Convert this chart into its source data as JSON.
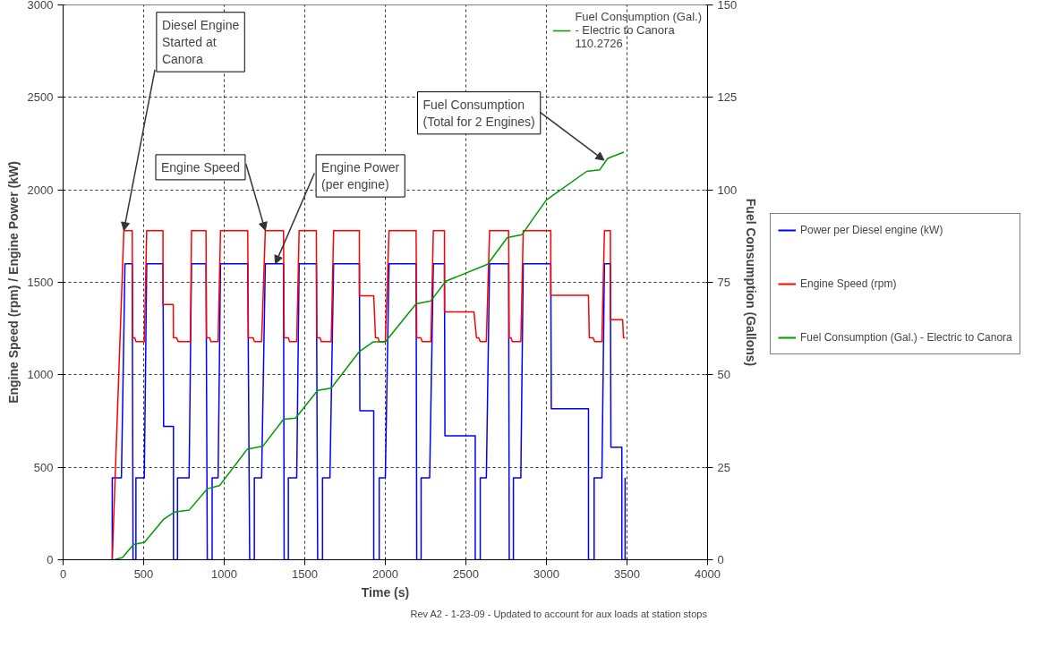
{
  "chart_data": {
    "type": "line",
    "xlabel": "Time (s)",
    "ylabel": "Engine Speed (rpm) / Engine Power (kW)",
    "y2label": "Fuel Consumption (Gallons)",
    "xlim": [
      0,
      4000
    ],
    "xticks": [
      0,
      500,
      1000,
      1500,
      2000,
      2500,
      3000,
      3500,
      4000
    ],
    "ylim": [
      0,
      3000
    ],
    "yticks": [
      0,
      500,
      1000,
      1500,
      2000,
      2500,
      3000
    ],
    "y2lim": [
      0,
      150
    ],
    "y2ticks": [
      0,
      25,
      50,
      75,
      100,
      125,
      150
    ],
    "grid": true,
    "legend": "right",
    "line_style": "solid",
    "series": [
      {
        "name": "Power per Diesel engine (kW)",
        "color": "#0000ff",
        "x": [
          305,
          305,
          362,
          384,
          429,
          434,
          452,
          452,
          504,
          519,
          620,
          624,
          685,
          685,
          710,
          710,
          782,
          797,
          887,
          895,
          925,
          925,
          962,
          977,
          1146,
          1158,
          1187,
          1187,
          1232,
          1255,
          1368,
          1372,
          1398,
          1398,
          1450,
          1465,
          1572,
          1580,
          1610,
          1610,
          1656,
          1679,
          1839,
          1842,
          1928,
          1928,
          1962,
          1962,
          2000,
          2023,
          2191,
          2195,
          2222,
          2222,
          2275,
          2298,
          2367,
          2370,
          2558,
          2558,
          2589,
          2589,
          2627,
          2647,
          2765,
          2769,
          2795,
          2795,
          2841,
          2856,
          3027,
          3030,
          3261,
          3261,
          3296,
          3296,
          3344,
          3360,
          3397,
          3400,
          3468,
          3468,
          3488,
          3488
        ],
        "values": [
          0,
          443,
          443,
          1600,
          1600,
          0,
          0,
          443,
          443,
          1600,
          1600,
          721,
          721,
          0,
          0,
          443,
          443,
          1600,
          1600,
          0,
          0,
          443,
          443,
          1600,
          1600,
          0,
          0,
          443,
          443,
          1600,
          1600,
          0,
          0,
          443,
          443,
          1600,
          1600,
          0,
          0,
          443,
          443,
          1600,
          1600,
          806,
          806,
          0,
          0,
          443,
          443,
          1600,
          1600,
          0,
          0,
          443,
          443,
          1600,
          1600,
          670,
          670,
          0,
          0,
          443,
          443,
          1600,
          1600,
          0,
          0,
          443,
          443,
          1600,
          1600,
          817,
          817,
          0,
          0,
          443,
          443,
          1600,
          1600,
          609,
          609,
          0,
          0,
          443
        ]
      },
      {
        "name": "Engine Speed (rpm)",
        "color": "#ff0000",
        "x": [
          305,
          377,
          429,
          432,
          445,
          452,
          504,
          519,
          620,
          620,
          684,
          685,
          705,
          714,
          790,
          797,
          887,
          890,
          910,
          917,
          962,
          977,
          1146,
          1150,
          1180,
          1187,
          1232,
          1255,
          1368,
          1372,
          1398,
          1405,
          1450,
          1465,
          1572,
          1575,
          1595,
          1602,
          1664,
          1679,
          1839,
          1839,
          1928,
          1939,
          1955,
          1962,
          2000,
          2023,
          2191,
          2195,
          2220,
          2229,
          2283,
          2298,
          2367,
          2367,
          2550,
          2566,
          2580,
          2589,
          2627,
          2647,
          2765,
          2769,
          2780,
          2788,
          2841,
          2856,
          3027,
          3027,
          3261,
          3266,
          3290,
          3299,
          3344,
          3360,
          3397,
          3397,
          3473,
          3478,
          3488
        ],
        "values": [
          0,
          1780,
          1780,
          1200,
          1200,
          1180,
          1180,
          1780,
          1780,
          1380,
          1380,
          1200,
          1200,
          1180,
          1180,
          1780,
          1780,
          1200,
          1200,
          1180,
          1180,
          1780,
          1780,
          1200,
          1200,
          1180,
          1180,
          1780,
          1780,
          1200,
          1200,
          1180,
          1180,
          1780,
          1780,
          1200,
          1200,
          1180,
          1180,
          1780,
          1780,
          1428,
          1428,
          1200,
          1200,
          1180,
          1180,
          1780,
          1780,
          1200,
          1200,
          1180,
          1180,
          1780,
          1780,
          1340,
          1340,
          1200,
          1200,
          1180,
          1180,
          1780,
          1780,
          1200,
          1200,
          1180,
          1180,
          1780,
          1780,
          1430,
          1430,
          1200,
          1200,
          1180,
          1180,
          1780,
          1780,
          1298,
          1298,
          1200,
          1200
        ]
      },
      {
        "name": "Fuel Consumption (Gal.) - Electric to Canora",
        "color": "#009900",
        "axis": "y2",
        "x": [
          317,
          369,
          437,
          505,
          625,
          692,
          782,
          895,
          970,
          1143,
          1240,
          1368,
          1443,
          1580,
          1664,
          1839,
          1924,
          2000,
          2191,
          2283,
          2375,
          2635,
          2757,
          2849,
          2910,
          3000,
          3250,
          3330,
          3380,
          3480
        ],
        "values": [
          0,
          0.6,
          4.1,
          4.7,
          11,
          12.9,
          13.4,
          19.2,
          20,
          29.9,
          30.7,
          38,
          38.3,
          45.8,
          46.4,
          56.3,
          58.9,
          58.9,
          69.2,
          70,
          75.3,
          79.9,
          87.1,
          87.9,
          91.8,
          97.3,
          105,
          105.4,
          108.5,
          110.2
        ]
      }
    ],
    "annotations": [
      {
        "text": "Diesel Engine Started at Canora",
        "x": 377,
        "y": 1780
      },
      {
        "text": "Engine Speed",
        "x": 1255,
        "y": 1780
      },
      {
        "text": "Engine Power (per engine)",
        "x": 1317,
        "y": 1600
      },
      {
        "text": "Fuel Consumption (Total for 2 Engines)",
        "x": 3358,
        "y": 2160
      },
      "Fuel Consumption (Gal.) - Electric to Canora 110.2726",
      "Rev A2 - 1-23-09 - Updated to account for aux loads at station stops"
    ]
  }
}
